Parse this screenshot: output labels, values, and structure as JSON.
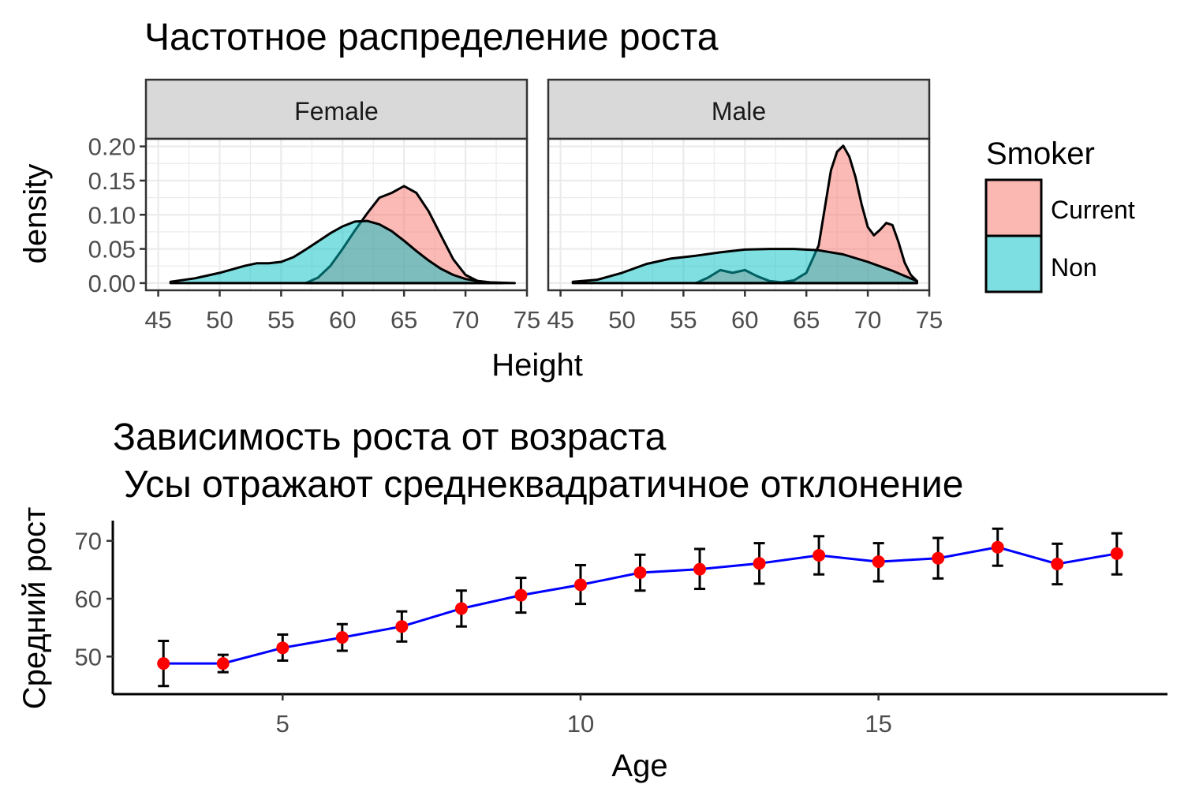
{
  "chart_data": [
    {
      "type": "area",
      "title": "Частотное распределение роста",
      "xlabel": "Height",
      "ylabel": "density",
      "xlim": [
        45,
        75
      ],
      "ylim": [
        0,
        0.2
      ],
      "x_ticks": [
        "45",
        "50",
        "55",
        "60",
        "65",
        "70",
        "75"
      ],
      "y_ticks": [
        "0.00",
        "0.05",
        "0.10",
        "0.15",
        "0.20"
      ],
      "grid": true,
      "legend": {
        "title": "Smoker",
        "placement": "right",
        "entries": [
          {
            "label": "Current",
            "color": "#F8766D"
          },
          {
            "label": "Non",
            "color": "#00BFC4"
          }
        ]
      },
      "facets": [
        {
          "label": "Female",
          "series": [
            {
              "name": "Current",
              "color": "#F8766D",
              "x": [
                57,
                58,
                59,
                60,
                61,
                62,
                63,
                64,
                65,
                66,
                67,
                68,
                69,
                70,
                71,
                72,
                73
              ],
              "y": [
                0.0,
                0.008,
                0.025,
                0.05,
                0.077,
                0.102,
                0.125,
                0.132,
                0.142,
                0.132,
                0.105,
                0.07,
                0.035,
                0.012,
                0.003,
                0.001,
                0.0
              ]
            },
            {
              "name": "Non",
              "color": "#00BFC4",
              "x": [
                46,
                48,
                50,
                52,
                53,
                54,
                55,
                56,
                57,
                58,
                59,
                60,
                61,
                62,
                63,
                64,
                65,
                66,
                67,
                68,
                69,
                70,
                71,
                72,
                74
              ],
              "y": [
                0.002,
                0.007,
                0.015,
                0.025,
                0.029,
                0.029,
                0.031,
                0.038,
                0.049,
                0.061,
                0.073,
                0.083,
                0.09,
                0.091,
                0.086,
                0.076,
                0.062,
                0.047,
                0.033,
                0.021,
                0.012,
                0.006,
                0.003,
                0.001,
                0.0
              ]
            }
          ]
        },
        {
          "label": "Male",
          "series": [
            {
              "name": "Current",
              "color": "#F8766D",
              "x": [
                56,
                57,
                58,
                59,
                60,
                61,
                62,
                63,
                64,
                65,
                66,
                66.5,
                67,
                67.5,
                68,
                68.5,
                69,
                69.5,
                70,
                70.5,
                71,
                71.5,
                72,
                72.5,
                73,
                73.5,
                74
              ],
              "y": [
                0.0,
                0.008,
                0.019,
                0.015,
                0.019,
                0.01,
                0.003,
                0.001,
                0.004,
                0.015,
                0.055,
                0.11,
                0.165,
                0.192,
                0.201,
                0.185,
                0.155,
                0.115,
                0.082,
                0.07,
                0.078,
                0.088,
                0.085,
                0.06,
                0.03,
                0.012,
                0.003
              ]
            },
            {
              "name": "Non",
              "color": "#00BFC4",
              "x": [
                46,
                48,
                50,
                52,
                54,
                56,
                58,
                60,
                62,
                64,
                66,
                68,
                70,
                72,
                74
              ],
              "y": [
                0.002,
                0.005,
                0.015,
                0.028,
                0.036,
                0.04,
                0.045,
                0.049,
                0.05,
                0.05,
                0.048,
                0.042,
                0.031,
                0.018,
                0.003
              ]
            }
          ]
        }
      ]
    },
    {
      "type": "line",
      "title": "Зависимость роста от возраста",
      "subtitle": "Усы отражают среднеквадратичное отклонение",
      "xlabel": "Age",
      "ylabel": "Средний рост",
      "xlim": [
        2.15,
        19.85
      ],
      "ylim": [
        43.5,
        73.5
      ],
      "x_ticks": [
        "5",
        "10",
        "15"
      ],
      "y_ticks": [
        "50",
        "60",
        "70"
      ],
      "grid": false,
      "line_color": "#0000FF",
      "point_color": "#FF0000",
      "x": [
        3,
        4,
        5,
        6,
        7,
        8,
        9,
        10,
        11,
        12,
        13,
        14,
        15,
        16,
        17,
        18,
        19
      ],
      "y": [
        48.8,
        48.8,
        51.5,
        53.3,
        55.2,
        58.3,
        60.6,
        62.4,
        64.5,
        65.1,
        66.1,
        67.5,
        66.4,
        67.0,
        68.9,
        66.0,
        67.8
      ],
      "error_low": [
        44.9,
        47.3,
        49.3,
        51.0,
        52.6,
        55.2,
        57.6,
        59.1,
        61.4,
        61.7,
        62.6,
        64.2,
        63.0,
        63.5,
        65.7,
        62.5,
        64.2
      ],
      "error_high": [
        52.7,
        50.3,
        53.8,
        55.6,
        57.8,
        61.4,
        63.6,
        65.8,
        67.6,
        68.6,
        69.6,
        70.8,
        69.6,
        70.5,
        72.1,
        69.5,
        71.3
      ]
    }
  ]
}
